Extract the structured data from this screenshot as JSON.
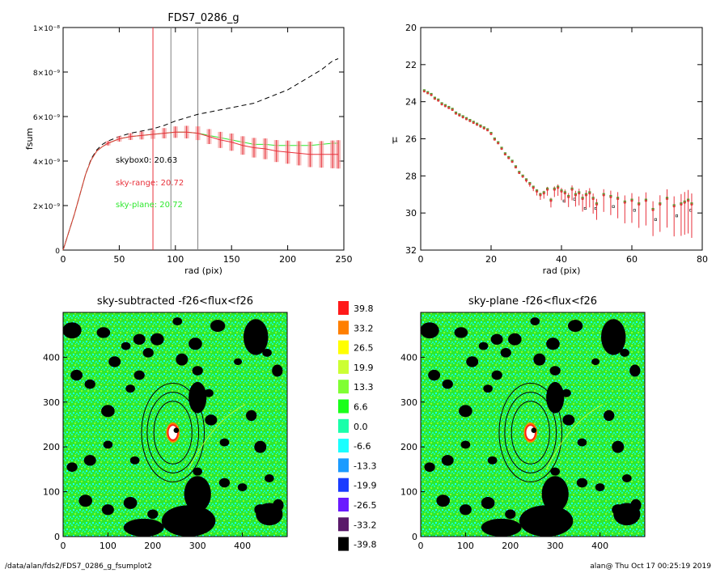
{
  "footer": {
    "left": "/data/alan/fds2/FDS7_0286_g_fsumplot2",
    "right": "alan@  Thu Oct 17 00:25:19 2019"
  },
  "chart_data": [
    {
      "type": "line",
      "title": "FDS7_0286_g",
      "xlabel": "rad (pix)",
      "ylabel": "fsum",
      "xlim": [
        0,
        250
      ],
      "ylim": [
        0,
        1e-08
      ],
      "xticks": [
        0,
        50,
        100,
        150,
        200,
        250
      ],
      "yticks": [
        "0",
        "2×10⁻⁹",
        "4×10⁻⁹",
        "6×10⁻⁹",
        "8×10⁻⁹",
        "1×10⁻⁸"
      ],
      "vlines": [
        {
          "x": 80,
          "color": "#e8323c"
        },
        {
          "x": 96,
          "color": "#808080"
        },
        {
          "x": 120,
          "color": "#808080"
        }
      ],
      "annotations": [
        {
          "text": "skybox0: 20.63",
          "color": "#000000"
        },
        {
          "text": "sky-range: 20.72",
          "color": "#e8323c"
        },
        {
          "text": "sky-plane: 20.72",
          "color": "#2ee82e"
        }
      ],
      "series": [
        {
          "color": "#000000",
          "dash": true,
          "x": [
            0,
            5,
            10,
            15,
            20,
            25,
            30,
            35,
            40,
            50,
            60,
            70,
            80,
            90,
            100,
            110,
            120,
            130,
            140,
            150,
            160,
            170,
            180,
            190,
            200,
            210,
            220,
            230,
            240,
            245
          ],
          "y": [
            0,
            8e-10,
            1.6e-09,
            2.5e-09,
            3.4e-09,
            4.1e-09,
            4.5e-09,
            4.75e-09,
            4.9e-09,
            5.1e-09,
            5.25e-09,
            5.35e-09,
            5.45e-09,
            5.6e-09,
            5.8e-09,
            5.95e-09,
            6.1e-09,
            6.2e-09,
            6.3e-09,
            6.4e-09,
            6.5e-09,
            6.6e-09,
            6.8e-09,
            7e-09,
            7.2e-09,
            7.5e-09,
            7.8e-09,
            8.1e-09,
            8.5e-09,
            8.6e-09
          ]
        },
        {
          "color": "#2ee82e",
          "dash": false,
          "x": [
            0,
            5,
            10,
            15,
            20,
            25,
            30,
            35,
            40,
            50,
            60,
            70,
            80,
            90,
            100,
            110,
            120,
            130,
            140,
            150,
            160,
            170,
            180,
            190,
            200,
            210,
            220,
            230,
            240,
            245
          ],
          "y": [
            0,
            8e-10,
            1.6e-09,
            2.5e-09,
            3.4e-09,
            4.05e-09,
            4.45e-09,
            4.65e-09,
            4.8e-09,
            5e-09,
            5.1e-09,
            5.15e-09,
            5.2e-09,
            5.25e-09,
            5.3e-09,
            5.3e-09,
            5.25e-09,
            5.15e-09,
            5.05e-09,
            4.95e-09,
            4.85e-09,
            4.75e-09,
            4.75e-09,
            4.7e-09,
            4.7e-09,
            4.7e-09,
            4.7e-09,
            4.75e-09,
            4.8e-09,
            4.8e-09
          ]
        },
        {
          "color": "#e8323c",
          "dash": false,
          "errors": true,
          "x": [
            0,
            5,
            10,
            15,
            20,
            25,
            30,
            35,
            40,
            50,
            60,
            70,
            80,
            90,
            100,
            110,
            120,
            130,
            140,
            150,
            160,
            170,
            180,
            190,
            200,
            210,
            220,
            230,
            240,
            245
          ],
          "y": [
            0,
            8e-10,
            1.6e-09,
            2.5e-09,
            3.4e-09,
            4.05e-09,
            4.45e-09,
            4.65e-09,
            4.8e-09,
            5e-09,
            5.1e-09,
            5.15e-09,
            5.2e-09,
            5.25e-09,
            5.3e-09,
            5.3e-09,
            5.25e-09,
            5.1e-09,
            4.95e-09,
            4.85e-09,
            4.7e-09,
            4.6e-09,
            4.55e-09,
            4.45e-09,
            4.4e-09,
            4.35e-09,
            4.3e-09,
            4.3e-09,
            4.3e-09,
            4.3e-09
          ]
        }
      ]
    },
    {
      "type": "scatter",
      "title": "",
      "xlabel": "rad (pix)",
      "ylabel": "μ",
      "xlim": [
        0,
        80
      ],
      "ylim": [
        32,
        20
      ],
      "xticks": [
        0,
        20,
        40,
        60,
        80
      ],
      "yticks": [
        20,
        22,
        24,
        26,
        28,
        30,
        32
      ],
      "series": [
        {
          "color": "#e8323c",
          "marker": "square",
          "x": [
            1,
            2,
            3,
            4,
            5,
            6,
            7,
            8,
            9,
            10,
            11,
            12,
            13,
            14,
            15,
            16,
            17,
            18,
            19,
            20,
            21,
            22,
            23,
            24,
            25,
            26,
            27,
            28,
            29,
            30,
            31,
            32,
            33,
            34,
            35,
            36,
            37,
            38,
            39,
            40,
            41,
            42,
            43,
            44,
            45,
            46,
            47,
            48,
            49,
            50,
            52,
            54,
            56,
            58,
            60,
            62,
            64,
            66,
            68,
            70,
            72,
            74,
            75,
            76,
            77
          ],
          "y": [
            23.4,
            23.5,
            23.6,
            23.8,
            23.9,
            24.1,
            24.2,
            24.3,
            24.4,
            24.6,
            24.7,
            24.8,
            24.9,
            25.0,
            25.1,
            25.2,
            25.3,
            25.4,
            25.5,
            25.7,
            26.0,
            26.2,
            26.5,
            26.8,
            27.0,
            27.2,
            27.5,
            27.8,
            28.0,
            28.2,
            28.4,
            28.6,
            28.8,
            29.0,
            28.9,
            28.7,
            29.3,
            28.7,
            28.6,
            28.8,
            28.9,
            29.1,
            28.7,
            29.0,
            28.9,
            29.2,
            29.0,
            28.9,
            29.2,
            29.5,
            29.0,
            29.1,
            29.2,
            29.4,
            29.3,
            29.5,
            29.3,
            29.8,
            29.5,
            29.2,
            29.6,
            29.5,
            29.4,
            29.3,
            29.5
          ]
        }
      ]
    },
    {
      "type": "heatmap",
      "title": "sky-subtracted -f26<flux<f26",
      "xticks": [
        0,
        100,
        200,
        300,
        400
      ],
      "yticks": [
        0,
        100,
        200,
        300,
        400
      ]
    },
    {
      "type": "heatmap",
      "title": "sky-plane -f26<flux<f26",
      "xticks": [
        0,
        100,
        200,
        300,
        400
      ],
      "yticks": [
        0,
        100,
        200,
        300,
        400
      ]
    },
    {
      "type": "table",
      "colorbar": [
        {
          "label": "39.8",
          "color": "#ff1a1a"
        },
        {
          "label": "33.2",
          "color": "#ff7f00"
        },
        {
          "label": "26.5",
          "color": "#ffff00"
        },
        {
          "label": "19.9",
          "color": "#ccff33"
        },
        {
          "label": "13.3",
          "color": "#80ff33"
        },
        {
          "label": "6.6",
          "color": "#1aff1a"
        },
        {
          "label": "0.0",
          "color": "#1affaa"
        },
        {
          "label": "-6.6",
          "color": "#1affff"
        },
        {
          "label": "-13.3",
          "color": "#1a9bff"
        },
        {
          "label": "-19.9",
          "color": "#1a3cff"
        },
        {
          "label": "-26.5",
          "color": "#6a1aff"
        },
        {
          "label": "-33.2",
          "color": "#5a1a6a"
        },
        {
          "label": "-39.8",
          "color": "#000000"
        }
      ]
    }
  ]
}
